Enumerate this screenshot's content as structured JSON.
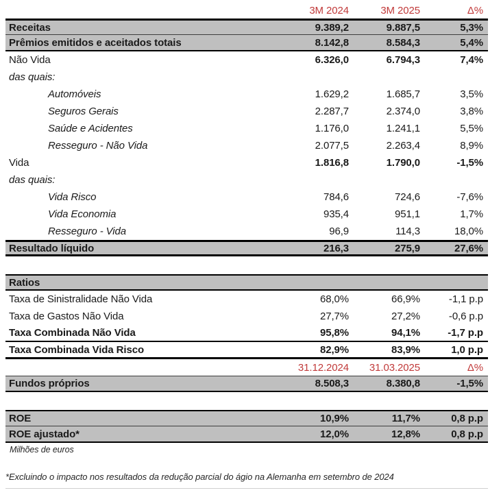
{
  "colors": {
    "accent_red": "#C13A3A",
    "row_gray": "#BFBFBF",
    "border_dark": "#000000"
  },
  "rows": [
    {
      "kind": "colhead",
      "label": "",
      "v1": "3M 2024",
      "v2": "3M 2025",
      "v3": "Δ%"
    },
    {
      "kind": "gray",
      "label": "Receitas",
      "v1": "9.389,2",
      "v2": "9.887,5",
      "v3": "5,3%",
      "border": "bt-thick bb-thin"
    },
    {
      "kind": "gray",
      "label": "Prêmios emitidos e aceitados totais",
      "v1": "8.142,8",
      "v2": "8.584,3",
      "v3": "5,4%",
      "border": "bb-med"
    },
    {
      "kind": "boldvals",
      "label": "Não Vida",
      "v1": "6.326,0",
      "v2": "6.794,3",
      "v3": "7,4%"
    },
    {
      "kind": "note",
      "label": "das quais:",
      "v1": "",
      "v2": "",
      "v3": ""
    },
    {
      "kind": "sub",
      "label": "Automóveis",
      "v1": "1.629,2",
      "v2": "1.685,7",
      "v3": "3,5%"
    },
    {
      "kind": "sub",
      "label": "Seguros Gerais",
      "v1": "2.287,7",
      "v2": "2.374,0",
      "v3": "3,8%"
    },
    {
      "kind": "sub",
      "label": "Saúde e Acidentes",
      "v1": "1.176,0",
      "v2": "1.241,1",
      "v3": "5,5%"
    },
    {
      "kind": "sub",
      "label": "Resseguro - Não Vida",
      "v1": "2.077,5",
      "v2": "2.263,4",
      "v3": "8,9%"
    },
    {
      "kind": "boldvals",
      "label": "Vida",
      "v1": "1.816,8",
      "v2": "1.790,0",
      "v3": "-1,5%"
    },
    {
      "kind": "note",
      "label": "das quais:",
      "v1": "",
      "v2": "",
      "v3": ""
    },
    {
      "kind": "sub",
      "label": "Vida Risco",
      "v1": "784,6",
      "v2": "724,6",
      "v3": "-7,6%"
    },
    {
      "kind": "sub",
      "label": "Vida Economia",
      "v1": "935,4",
      "v2": "951,1",
      "v3": "1,7%"
    },
    {
      "kind": "sub",
      "label": "Resseguro - Vida",
      "v1": "96,9",
      "v2": "114,3",
      "v3": "18,0%"
    },
    {
      "kind": "gray",
      "label": "Resultado líquido",
      "v1": "216,3",
      "v2": "275,9",
      "v3": "27,6%",
      "border": "bt-thick bb-thick"
    },
    {
      "kind": "spacer"
    },
    {
      "kind": "gray",
      "label": "Ratios",
      "v1": "",
      "v2": "",
      "v3": "",
      "border": "bt-med bb-med"
    },
    {
      "kind": "plain",
      "label": "Taxa de Sinistralidade Não Vida",
      "v1": "68,0%",
      "v2": "66,9%",
      "v3": "-1,1 p.p"
    },
    {
      "kind": "plain",
      "label": "Taxa de Gastos Não Vida",
      "v1": "27,7%",
      "v2": "27,2%",
      "v3": "-0,6 p.p"
    },
    {
      "kind": "boldrow",
      "label": "Taxa Combinada Não Vida",
      "v1": "95,8%",
      "v2": "94,1%",
      "v3": "-1,7 p.p",
      "border": "bb-med"
    },
    {
      "kind": "boldrow",
      "label": "Taxa Combinada Vida Risco",
      "v1": "82,9%",
      "v2": "83,9%",
      "v3": "1,0 p.p",
      "border": "bb-thick"
    },
    {
      "kind": "colhead",
      "label": "",
      "v1": "31.12.2024",
      "v2": "31.03.2025",
      "v3": "Δ%"
    },
    {
      "kind": "gray",
      "label": "Fundos próprios",
      "v1": "8.508,3",
      "v2": "8.380,8",
      "v3": "-1,5%",
      "border": "bt-thin bb-med"
    },
    {
      "kind": "spacer"
    },
    {
      "kind": "gray",
      "label": "ROE",
      "v1": "10,9%",
      "v2": "11,7%",
      "v3": "0,8 p.p",
      "border": "bt-med bb-thin"
    },
    {
      "kind": "gray",
      "label": "ROE ajustado*",
      "v1": "12,0%",
      "v2": "12,8%",
      "v3": "0,8 p.p",
      "border": "bb-med"
    }
  ],
  "footer": {
    "units": "Milhões de euros",
    "footnote": "*Excluindo o impacto nos resultados da redução parcial do ágio na Alemanha em setembro de 2024"
  }
}
